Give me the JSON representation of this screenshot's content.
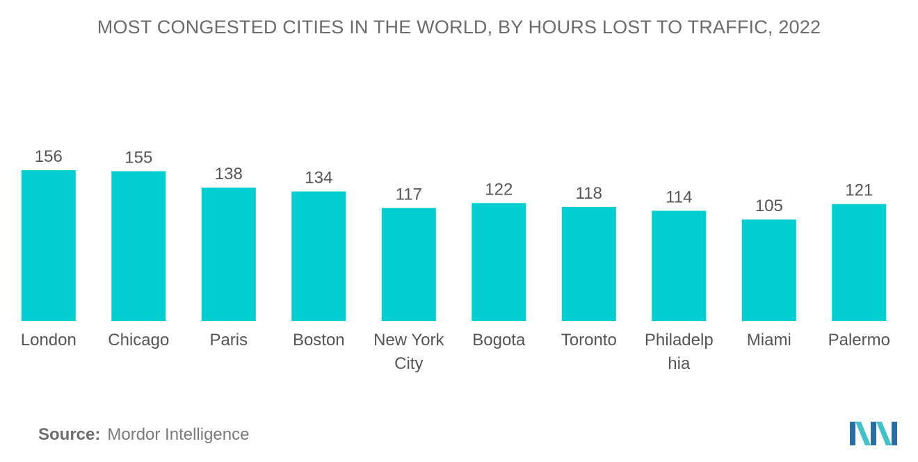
{
  "title": "MOST CONGESTED CITIES IN THE WORLD, BY HOURS LOST TO TRAFFIC, 2022",
  "source": {
    "label": "Source:",
    "text": "Mordor Intelligence"
  },
  "colors": {
    "bar": "#00CED1",
    "text": "#555555",
    "logo_dark": "#2a6fa3",
    "logo_light": "#3fc3c9"
  },
  "logo_icon": "mordor-intelligence-logo-icon",
  "chart_data": {
    "type": "bar",
    "title": "MOST CONGESTED CITIES IN THE WORLD, BY HOURS LOST TO TRAFFIC, 2022",
    "categories": [
      [
        "London"
      ],
      [
        "Chicago"
      ],
      [
        "Paris"
      ],
      [
        "Boston"
      ],
      [
        "New York",
        "City"
      ],
      [
        "Bogota"
      ],
      [
        "Toronto"
      ],
      [
        "Philadelp",
        "hia"
      ],
      [
        "Miami"
      ],
      [
        "Palermo"
      ]
    ],
    "values": [
      156,
      155,
      138,
      134,
      117,
      122,
      118,
      114,
      105,
      121
    ],
    "ylim": [
      0,
      156
    ],
    "grid": false,
    "legend": "none",
    "xlabel": "",
    "ylabel": ""
  }
}
